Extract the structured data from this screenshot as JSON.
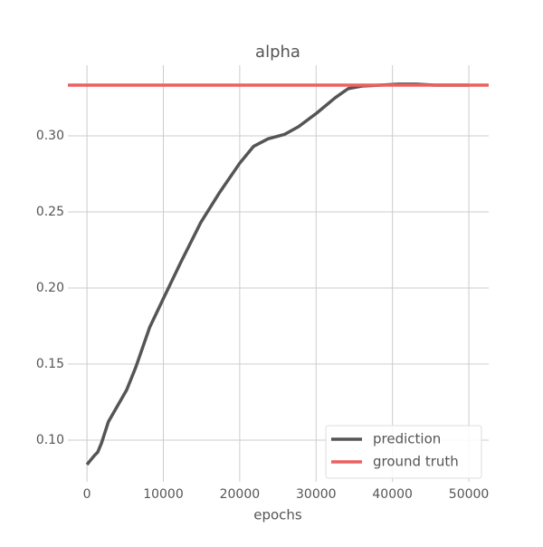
{
  "chart_data": {
    "type": "line",
    "title": "alpha",
    "x_label": "epochs",
    "xlim": [
      -2500,
      52600
    ],
    "ylim": [
      0.0726,
      0.3464
    ],
    "xticks": [
      0,
      10000,
      20000,
      30000,
      40000,
      50000
    ],
    "yticks": [
      {
        "value": 0.1,
        "label": "0.10"
      },
      0.15,
      {
        "value": 0.2,
        "label": "0.20"
      },
      0.25,
      {
        "value": 0.3,
        "label": "0.30"
      }
    ],
    "grid": true,
    "legend": "lower right",
    "series": [
      {
        "name": "prediction",
        "color": "#555555",
        "x": [
          0,
          500,
          1000,
          1400,
          1900,
          2800,
          5200,
          6400,
          8200,
          10000,
          12300,
          14900,
          17400,
          20000,
          21800,
          23700,
          25900,
          27700,
          30100,
          32500,
          34200,
          36000,
          38400,
          40800,
          43100,
          45500,
          47900,
          50000
        ],
        "values": [
          0.0839,
          0.087,
          0.09,
          0.092,
          0.098,
          0.112,
          0.133,
          0.148,
          0.174,
          0.193,
          0.217,
          0.243,
          0.263,
          0.282,
          0.293,
          0.298,
          0.301,
          0.306,
          0.315,
          0.325,
          0.331,
          0.3327,
          0.3333,
          0.334,
          0.334,
          0.3333,
          0.3333,
          0.3333
        ]
      },
      {
        "name": "ground truth",
        "color": "#ee5f5f",
        "value": 0.3333
      }
    ]
  }
}
